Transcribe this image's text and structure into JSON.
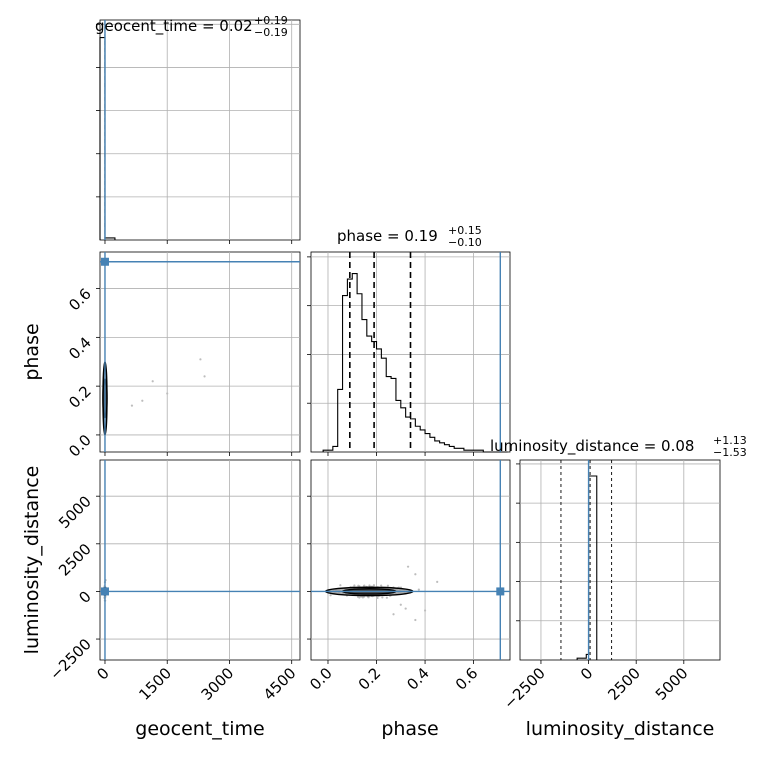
{
  "chart_data": {
    "type": "corner",
    "parameters": [
      "geocent_time",
      "phase",
      "luminosity_distance"
    ],
    "injection_color": "#4682b4",
    "titles": [
      {
        "param": "geocent_time",
        "text": "geocent_time = 0.02",
        "sup": "+0.19",
        "sub": "−0.19"
      },
      {
        "param": "phase",
        "text": "phase = 0.19",
        "sup": "+0.15",
        "sub": "−0.10"
      },
      {
        "param": "luminosity_distance",
        "text": "luminosity_distance = 0.08",
        "sup": "+1.13",
        "sub": "−1.53"
      }
    ],
    "axis_labels": {
      "x": [
        "geocent_time",
        "phase",
        "luminosity_distance"
      ],
      "y": [
        "phase",
        "luminosity_distance"
      ]
    },
    "ranges": {
      "geocent_time": [
        -120,
        4700
      ],
      "phase": [
        -0.07,
        0.75
      ],
      "luminosity_distance": [
        -3600,
        6900
      ]
    },
    "ticks": {
      "geocent_time": {
        "values": [
          0,
          1500,
          3000,
          4500
        ],
        "labels": [
          "0",
          "1500",
          "3000",
          "4500"
        ]
      },
      "phase": {
        "values": [
          0.0,
          0.2,
          0.4,
          0.6
        ],
        "labels": [
          "0.0",
          "0.2",
          "0.4",
          "0.6"
        ]
      },
      "luminosity_distance": {
        "values": [
          -2500,
          0,
          2500,
          5000
        ],
        "labels": [
          "−2500",
          "0",
          "2500",
          "5000"
        ]
      }
    },
    "injection": {
      "geocent_time": 0,
      "phase": 0.71,
      "luminosity_distance": 0
    },
    "hist_geocent_time": {
      "bins": [
        -120,
        0,
        240
      ],
      "counts": [
        1.0,
        0.01
      ],
      "quantiles": [
        -0.17,
        0.02,
        0.21
      ]
    },
    "hist_phase": {
      "edges": [
        -0.02,
        0.02,
        0.04,
        0.06,
        0.08,
        0.1,
        0.12,
        0.14,
        0.16,
        0.18,
        0.2,
        0.22,
        0.24,
        0.26,
        0.28,
        0.3,
        0.32,
        0.34,
        0.36,
        0.38,
        0.4,
        0.42,
        0.44,
        0.46,
        0.48,
        0.5,
        0.52,
        0.54,
        0.56,
        0.58,
        0.6,
        0.62,
        0.64,
        0.66,
        0.68,
        0.7,
        0.74
      ],
      "counts": [
        0.01,
        0.03,
        0.34,
        0.85,
        0.94,
        0.97,
        0.86,
        0.72,
        0.63,
        0.6,
        0.56,
        0.51,
        0.41,
        0.4,
        0.28,
        0.24,
        0.19,
        0.18,
        0.14,
        0.12,
        0.1,
        0.08,
        0.06,
        0.05,
        0.04,
        0.03,
        0.02,
        0.02,
        0.01,
        0.01,
        0.01,
        0.01,
        0.0,
        0.0,
        0.0,
        0.0
      ],
      "quantiles": [
        0.09,
        0.19,
        0.34
      ]
    },
    "hist_luminosity_distance": {
      "bins": [
        -600,
        -120,
        0,
        430
      ],
      "counts": [
        0.01,
        0.03,
        1.0
      ],
      "quantiles": [
        -1450,
        80,
        1210
      ]
    },
    "contours": {
      "phase_vs_geocent_time": {
        "center": [
          0,
          0.15
        ],
        "levels": [
          {
            "half_width": 25,
            "half_height": 0.15
          },
          {
            "half_width": 12,
            "half_height": 0.08
          }
        ]
      },
      "luminosity_distance_vs_geocent_time": {
        "center": [
          0,
          0
        ],
        "levels": [
          {
            "half_width": 60,
            "half_height": 200
          }
        ]
      },
      "luminosity_distance_vs_phase": {
        "center": [
          0.17,
          0
        ],
        "levels": [
          {
            "half_width": 0.18,
            "half_height": 220
          },
          {
            "half_width": 0.11,
            "half_height": 140
          }
        ]
      }
    },
    "grid": true
  }
}
